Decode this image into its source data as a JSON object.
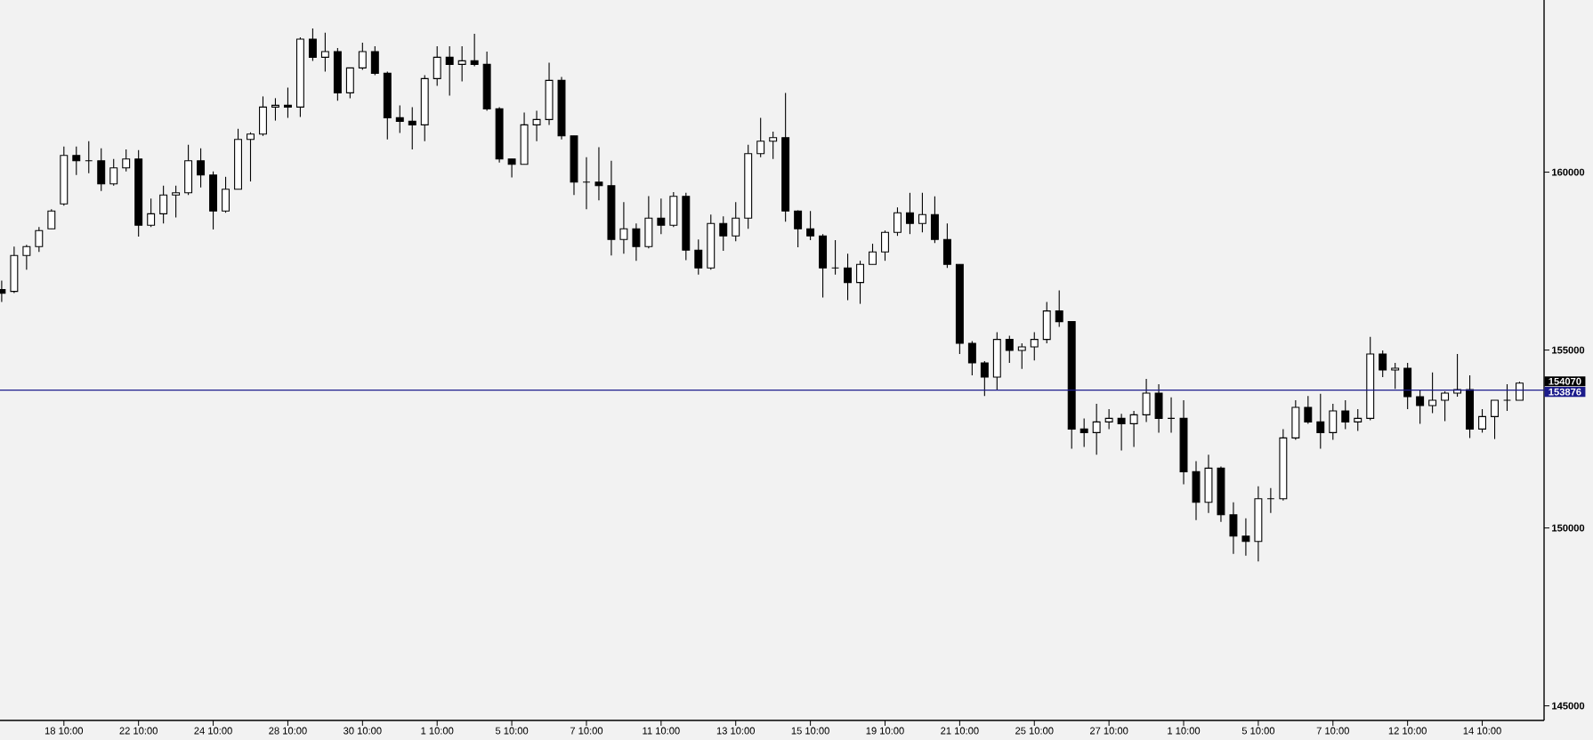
{
  "chart_data": {
    "type": "candlestick",
    "categories": [
      null,
      null,
      null,
      null,
      null,
      "18 10:00",
      null,
      null,
      null,
      null,
      null,
      "22 10:00",
      null,
      null,
      null,
      null,
      null,
      "24 10:00",
      null,
      null,
      null,
      null,
      null,
      "28 10:00",
      null,
      null,
      null,
      null,
      null,
      "30 10:00",
      null,
      null,
      null,
      null,
      null,
      "1 10:00",
      null,
      null,
      null,
      null,
      null,
      "5 10:00",
      null,
      null,
      null,
      null,
      null,
      "7 10:00",
      null,
      null,
      null,
      null,
      null,
      "11 10:00",
      null,
      null,
      null,
      null,
      null,
      "13 10:00",
      null,
      null,
      null,
      null,
      null,
      "15 10:00",
      null,
      null,
      null,
      null,
      null,
      "19 10:00",
      null,
      null,
      null,
      null,
      null,
      "21 10:00",
      null,
      null,
      null,
      null,
      null,
      "25 10:00",
      null,
      null,
      null,
      null,
      null,
      "27 10:00",
      null,
      null,
      null,
      null,
      null,
      "1 10:00",
      null,
      null,
      null,
      null,
      null,
      "5 10:00",
      null,
      null,
      null,
      null,
      null,
      "7 10:00",
      null,
      null,
      null,
      null,
      null,
      "12 10:00",
      null,
      null,
      null,
      null,
      null,
      "14 10:00",
      null,
      null,
      null
    ],
    "ohlc": [
      [
        156700,
        156950,
        156350,
        156600
      ],
      [
        156650,
        157910,
        156600,
        157660
      ],
      [
        157660,
        157960,
        157260,
        157910
      ],
      [
        157910,
        158460,
        157760,
        158360
      ],
      [
        158410,
        158960,
        158410,
        158910
      ],
      [
        159110,
        160720,
        159060,
        160470
      ],
      [
        160470,
        160720,
        159920,
        160320
      ],
      [
        160320,
        160870,
        159970,
        160320
      ],
      [
        160320,
        160670,
        159470,
        159670
      ],
      [
        159670,
        160370,
        159620,
        160120
      ],
      [
        160120,
        160640,
        160020,
        160370
      ],
      [
        160370,
        160620,
        158190,
        158510
      ],
      [
        158510,
        159260,
        158460,
        158830
      ],
      [
        158830,
        159620,
        158560,
        159360
      ],
      [
        159360,
        159620,
        158730,
        159420
      ],
      [
        159420,
        160770,
        159360,
        160320
      ],
      [
        160320,
        160670,
        159570,
        159920
      ],
      [
        159920,
        160020,
        158390,
        158910
      ],
      [
        158910,
        159870,
        158860,
        159520
      ],
      [
        159520,
        161220,
        159520,
        160920
      ],
      [
        160920,
        161120,
        159740,
        161070
      ],
      [
        161070,
        162130,
        161020,
        161830
      ],
      [
        161830,
        162080,
        161450,
        161880
      ],
      [
        161880,
        162380,
        161530,
        161830
      ],
      [
        161830,
        163790,
        161550,
        163740
      ],
      [
        163740,
        164040,
        163130,
        163230
      ],
      [
        163230,
        163920,
        162830,
        163390
      ],
      [
        163390,
        163490,
        162010,
        162230
      ],
      [
        162230,
        162930,
        162080,
        162930
      ],
      [
        162930,
        163640,
        162880,
        163390
      ],
      [
        163390,
        163540,
        162730,
        162780
      ],
      [
        162780,
        162830,
        160920,
        161530
      ],
      [
        161530,
        161880,
        161100,
        161430
      ],
      [
        161430,
        161830,
        160640,
        161330
      ],
      [
        161330,
        162730,
        160870,
        162630
      ],
      [
        162630,
        163540,
        162430,
        163230
      ],
      [
        163230,
        163540,
        162150,
        163030
      ],
      [
        163030,
        163540,
        162550,
        163130
      ],
      [
        163130,
        163890,
        162980,
        163030
      ],
      [
        163030,
        163390,
        161730,
        161780
      ],
      [
        161780,
        161830,
        160270,
        160370
      ],
      [
        160370,
        160370,
        159850,
        160220
      ],
      [
        160220,
        161680,
        160220,
        161330
      ],
      [
        161330,
        161730,
        160870,
        161480
      ],
      [
        161480,
        163080,
        161330,
        162580
      ],
      [
        162580,
        162680,
        160920,
        161020
      ],
      [
        161020,
        161020,
        159360,
        159720
      ],
      [
        159720,
        160420,
        158960,
        159720
      ],
      [
        159720,
        160700,
        159210,
        159620
      ],
      [
        159620,
        160320,
        157660,
        158110
      ],
      [
        158110,
        159160,
        157710,
        158410
      ],
      [
        158410,
        158560,
        157510,
        157910
      ],
      [
        157910,
        159330,
        157860,
        158710
      ],
      [
        158710,
        159260,
        158260,
        158510
      ],
      [
        158510,
        159440,
        158460,
        159320
      ],
      [
        159320,
        159420,
        157530,
        157810
      ],
      [
        157810,
        158110,
        157120,
        157310
      ],
      [
        157310,
        158810,
        157260,
        158560
      ],
      [
        158560,
        158760,
        157790,
        158210
      ],
      [
        158210,
        159160,
        158060,
        158710
      ],
      [
        158710,
        160770,
        158410,
        160520
      ],
      [
        160520,
        161530,
        160420,
        160870
      ],
      [
        160870,
        161140,
        160370,
        160970
      ],
      [
        160970,
        162230,
        158610,
        158910
      ],
      [
        158910,
        158930,
        157890,
        158410
      ],
      [
        158410,
        158910,
        158090,
        158210
      ],
      [
        158210,
        158260,
        156480,
        157310
      ],
      [
        157310,
        158090,
        157120,
        157310
      ],
      [
        157310,
        157710,
        156400,
        156900
      ],
      [
        156900,
        157510,
        156300,
        157410
      ],
      [
        157410,
        157990,
        157410,
        157760
      ],
      [
        157760,
        158360,
        157510,
        158310
      ],
      [
        158310,
        159010,
        158210,
        158860
      ],
      [
        158860,
        159420,
        158260,
        158560
      ],
      [
        158560,
        159420,
        158310,
        158810
      ],
      [
        158810,
        159320,
        158010,
        158110
      ],
      [
        158110,
        158560,
        157310,
        157410
      ],
      [
        157410,
        157410,
        154890,
        155190
      ],
      [
        155190,
        155250,
        154290,
        154640
      ],
      [
        154640,
        154690,
        153710,
        154240
      ],
      [
        154240,
        155500,
        153890,
        155300
      ],
      [
        155300,
        155400,
        154640,
        154990
      ],
      [
        154990,
        155190,
        154470,
        155090
      ],
      [
        155090,
        155500,
        154710,
        155300
      ],
      [
        155300,
        156350,
        155190,
        156100
      ],
      [
        156100,
        156680,
        155650,
        155800
      ],
      [
        155800,
        155800,
        152230,
        152780
      ],
      [
        152780,
        153080,
        152280,
        152680
      ],
      [
        152680,
        153490,
        152060,
        152980
      ],
      [
        152980,
        153340,
        152780,
        153080
      ],
      [
        153080,
        153210,
        152180,
        152930
      ],
      [
        152930,
        153290,
        152280,
        153180
      ],
      [
        153180,
        154190,
        152980,
        153790
      ],
      [
        153790,
        154040,
        152680,
        153080
      ],
      [
        153080,
        153670,
        152680,
        153080
      ],
      [
        153080,
        153590,
        151230,
        151580
      ],
      [
        151580,
        151880,
        150220,
        150720
      ],
      [
        150720,
        152060,
        150420,
        151680
      ],
      [
        151680,
        151730,
        150170,
        150370
      ],
      [
        150370,
        150720,
        149270,
        149770
      ],
      [
        149770,
        150270,
        149220,
        149620
      ],
      [
        149620,
        151170,
        149060,
        150820
      ],
      [
        150820,
        151120,
        150420,
        150820
      ],
      [
        150820,
        152780,
        150770,
        152530
      ],
      [
        152530,
        153590,
        152480,
        153390
      ],
      [
        153390,
        153710,
        152930,
        152980
      ],
      [
        152980,
        153770,
        152230,
        152680
      ],
      [
        152680,
        153490,
        152480,
        153290
      ],
      [
        153290,
        153590,
        152780,
        152980
      ],
      [
        152980,
        153340,
        152730,
        153080
      ],
      [
        153080,
        155370,
        153030,
        154890
      ],
      [
        154890,
        154990,
        154240,
        154440
      ],
      [
        154440,
        154640,
        153910,
        154490
      ],
      [
        154490,
        154640,
        153340,
        153690
      ],
      [
        153690,
        153890,
        152930,
        153440
      ],
      [
        153440,
        154370,
        153230,
        153590
      ],
      [
        153590,
        153840,
        153000,
        153790
      ],
      [
        153790,
        154890,
        153690,
        153890
      ],
      [
        153890,
        154290,
        152530,
        152780
      ],
      [
        152780,
        153340,
        152680,
        153130
      ],
      [
        153130,
        153590,
        152500,
        153590
      ],
      [
        153590,
        154040,
        153290,
        153590
      ],
      [
        153590,
        154110,
        153590,
        154070
      ]
    ],
    "ylim": [
      144590,
      164840
    ],
    "yticks": [
      145000,
      150000,
      155000,
      160000
    ],
    "ref_lines": [
      {
        "axis": "y",
        "value": 153876,
        "label": "153876",
        "color": "#1c1c8c"
      }
    ],
    "annotations": [
      "154070"
    ]
  }
}
